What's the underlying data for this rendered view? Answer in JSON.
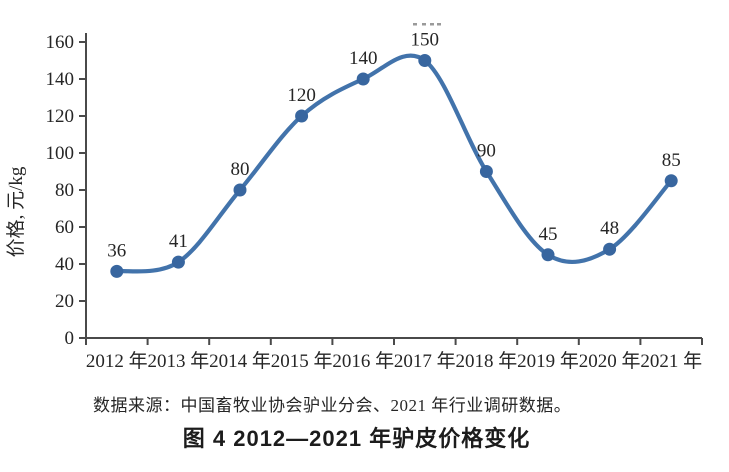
{
  "chart_data": {
    "type": "line",
    "smooth": true,
    "categories": [
      "2012 年",
      "2013 年",
      "2014 年",
      "2015 年",
      "2016 年",
      "2017 年",
      "2018 年",
      "2019 年",
      "2020 年",
      "2021 年"
    ],
    "values": [
      36,
      41,
      80,
      120,
      140,
      150,
      90,
      45,
      48,
      85
    ],
    "point_labels": [
      "36",
      "41",
      "80",
      "120",
      "140",
      "150",
      "90",
      "45",
      "48",
      "85"
    ],
    "ylabel": "价格, 元/kg",
    "xlabel": "",
    "ylim": [
      0,
      160
    ],
    "ytick_step": 20,
    "grid": false,
    "legend": "none",
    "source": "数据来源：中国畜牧业协会驴业分会、2021 年行业调研数据。",
    "caption": "图 4  2012—2021 年驴皮价格变化",
    "line_color": "#4273ab",
    "marker_color": "#38669f",
    "axis_color": "#4a4a4a",
    "text_color": "#262626"
  }
}
